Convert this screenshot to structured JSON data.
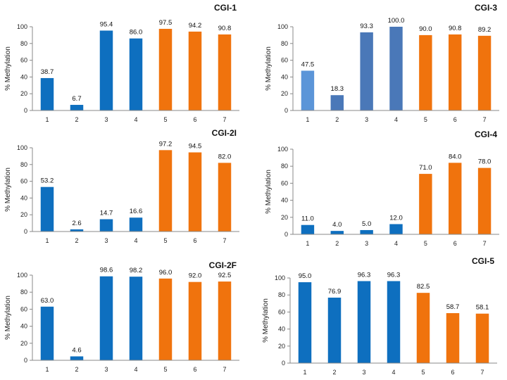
{
  "chart_data": [
    {
      "type": "bar",
      "title": "CGI-1",
      "ylabel": "% Methylation",
      "xlabel": "",
      "ylim": [
        0,
        100
      ],
      "yticks": [
        0,
        20,
        40,
        60,
        80,
        100
      ],
      "categories": [
        "1",
        "2",
        "3",
        "4",
        "5",
        "6",
        "7"
      ],
      "values": [
        38.7,
        6.7,
        95.4,
        86.0,
        97.5,
        94.2,
        90.8
      ],
      "labels": [
        "38.7",
        "6.7",
        "95.4",
        "86.0",
        "97.5",
        "94.2",
        "90.8"
      ],
      "colors": [
        "#0e6fbf",
        "#0e6fbf",
        "#0e6fbf",
        "#0e6fbf",
        "#f0730d",
        "#f0730d",
        "#f0730d"
      ]
    },
    {
      "type": "bar",
      "title": "CGI-3",
      "ylabel": "% Methylation",
      "xlabel": "",
      "ylim": [
        0,
        100
      ],
      "yticks": [
        0,
        20,
        40,
        60,
        80,
        100
      ],
      "categories": [
        "1",
        "2",
        "3",
        "4",
        "5",
        "6",
        "7"
      ],
      "values": [
        47.5,
        18.3,
        93.3,
        100.0,
        90.0,
        90.8,
        89.2
      ],
      "labels": [
        "47.5",
        "18.3",
        "93.3",
        "100.0",
        "90.0",
        "90.8",
        "89.2"
      ],
      "colors": [
        "#5b95d8",
        "#4a78b8",
        "#4a78b8",
        "#4a78b8",
        "#f0730d",
        "#f0730d",
        "#f0730d"
      ]
    },
    {
      "type": "bar",
      "title": "CGI-2I",
      "ylabel": "% Methylation",
      "xlabel": "",
      "ylim": [
        0,
        100
      ],
      "yticks": [
        0,
        20,
        40,
        60,
        80,
        100
      ],
      "categories": [
        "1",
        "2",
        "3",
        "4",
        "5",
        "6",
        "7"
      ],
      "values": [
        53.2,
        2.6,
        14.7,
        16.6,
        97.2,
        94.5,
        82.0
      ],
      "labels": [
        "53.2",
        "2.6",
        "14.7",
        "16.6",
        "97.2",
        "94.5",
        "82.0"
      ],
      "colors": [
        "#0e6fbf",
        "#0e6fbf",
        "#0e6fbf",
        "#0e6fbf",
        "#f0730d",
        "#f0730d",
        "#f0730d"
      ]
    },
    {
      "type": "bar",
      "title": "CGI-4",
      "ylabel": "% Methylation",
      "xlabel": "",
      "ylim": [
        0,
        100
      ],
      "yticks": [
        0,
        20,
        40,
        60,
        80,
        100
      ],
      "categories": [
        "1",
        "2",
        "3",
        "4",
        "5",
        "6",
        "7"
      ],
      "values": [
        11.0,
        4.0,
        5.0,
        12.0,
        71.0,
        84.0,
        78.0
      ],
      "labels": [
        "11.0",
        "4.0",
        "5.0",
        "12.0",
        "71.0",
        "84.0",
        "78.0"
      ],
      "colors": [
        "#0e6fbf",
        "#0e6fbf",
        "#0e6fbf",
        "#0e6fbf",
        "#f0730d",
        "#f0730d",
        "#f0730d"
      ]
    },
    {
      "type": "bar",
      "title": "CGI-2F",
      "ylabel": "% Methylation",
      "xlabel": "",
      "ylim": [
        0,
        100
      ],
      "yticks": [
        0,
        20,
        40,
        60,
        80,
        100
      ],
      "categories": [
        "1",
        "2",
        "3",
        "4",
        "5",
        "6",
        "7"
      ],
      "values": [
        63.0,
        4.6,
        98.6,
        98.2,
        96.0,
        92.0,
        92.5
      ],
      "labels": [
        "63.0",
        "4.6",
        "98.6",
        "98.2",
        "96.0",
        "92.0",
        "92.5"
      ],
      "colors": [
        "#0e6fbf",
        "#0e6fbf",
        "#0e6fbf",
        "#0e6fbf",
        "#f0730d",
        "#f0730d",
        "#f0730d"
      ]
    },
    {
      "type": "bar",
      "title": "CGI-5",
      "ylabel": "% Methylation",
      "xlabel": "",
      "ylim": [
        0,
        100
      ],
      "yticks": [
        0,
        20,
        40,
        60,
        80,
        100
      ],
      "categories": [
        "1",
        "2",
        "3",
        "4",
        "5",
        "6",
        "7"
      ],
      "values": [
        95.0,
        76.9,
        96.3,
        96.3,
        82.5,
        58.7,
        58.1
      ],
      "labels": [
        "95.0",
        "76.9",
        "96.3",
        "96.3",
        "82.5",
        "58.7",
        "58.1"
      ],
      "colors": [
        "#0e6fbf",
        "#0e6fbf",
        "#0e6fbf",
        "#0e6fbf",
        "#f0730d",
        "#f0730d",
        "#f0730d"
      ]
    }
  ]
}
